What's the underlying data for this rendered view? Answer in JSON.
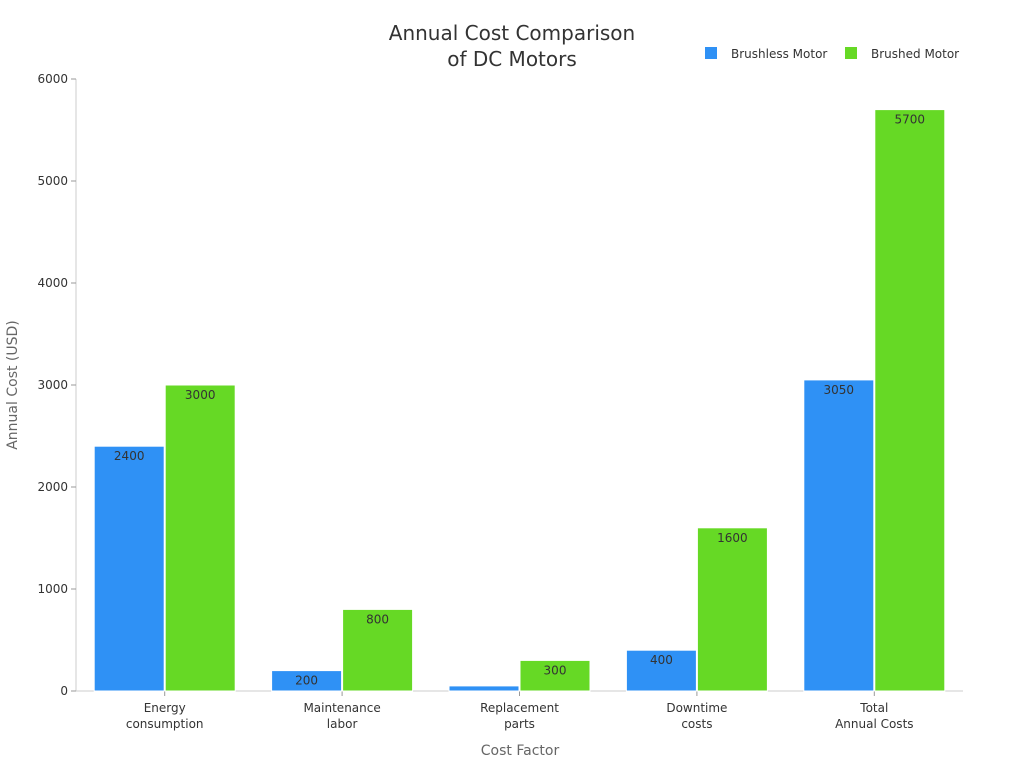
{
  "chart_data": {
    "type": "bar",
    "title": [
      "Annual Cost Comparison",
      "of DC Motors"
    ],
    "xlabel": "Cost Factor",
    "ylabel": "Annual Cost (USD)",
    "ylim": [
      0,
      6000
    ],
    "yticks": [
      0,
      1000,
      2000,
      3000,
      4000,
      5000,
      6000
    ],
    "grid": false,
    "legend_position": "top-right",
    "categories": [
      [
        "Energy",
        "consumption"
      ],
      [
        "Maintenance",
        "labor"
      ],
      [
        "Replacement",
        "parts"
      ],
      [
        "Downtime",
        "costs"
      ],
      [
        "Total",
        "Annual Costs"
      ]
    ],
    "series": [
      {
        "name": "Brushless Motor",
        "color": "#2f91f5",
        "values": [
          2400,
          200,
          50,
          400,
          3050
        ]
      },
      {
        "name": "Brushed Motor",
        "color": "#66d925",
        "values": [
          3000,
          800,
          300,
          1600,
          5700
        ]
      }
    ]
  }
}
